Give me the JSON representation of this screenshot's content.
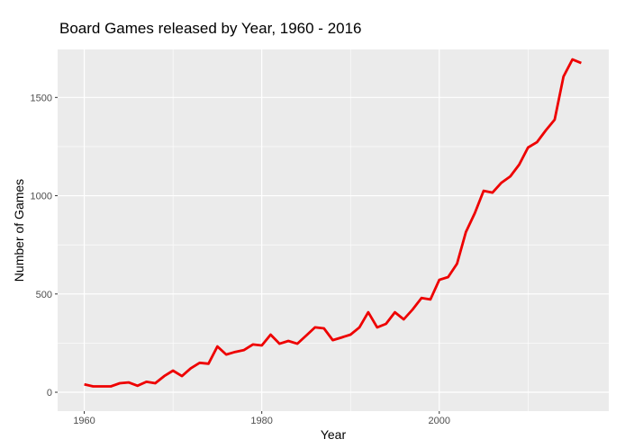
{
  "chart_data": {
    "type": "line",
    "title": "Board Games released by Year,  1960 - 2016",
    "xlabel": "Year",
    "ylabel": "Number of Games",
    "xlim": [
      1957,
      2019.1
    ],
    "ylim": [
      -96,
      1744
    ],
    "xticks": [
      1960,
      1980,
      2000
    ],
    "yticks": [
      0,
      500,
      1000,
      1500
    ],
    "x_minor": [
      1970,
      1990,
      2010
    ],
    "y_minor": [
      250,
      750,
      1250
    ],
    "grid": true,
    "line_color": "#ee0000",
    "panel_color": "#ebebeb",
    "x": [
      1960,
      1961,
      1962,
      1963,
      1964,
      1965,
      1966,
      1967,
      1968,
      1969,
      1970,
      1971,
      1972,
      1973,
      1974,
      1975,
      1976,
      1977,
      1978,
      1979,
      1980,
      1981,
      1982,
      1983,
      1984,
      1985,
      1986,
      1987,
      1988,
      1989,
      1990,
      1991,
      1992,
      1993,
      1994,
      1995,
      1996,
      1997,
      1998,
      1999,
      2000,
      2001,
      2002,
      2003,
      2004,
      2005,
      2006,
      2007,
      2008,
      2009,
      2010,
      2011,
      2012,
      2013,
      2014,
      2015,
      2016
    ],
    "y": [
      40,
      30,
      30,
      30,
      46,
      50,
      33,
      53,
      46,
      82,
      110,
      82,
      122,
      150,
      145,
      233,
      192,
      205,
      215,
      243,
      238,
      293,
      247,
      261,
      247,
      288,
      330,
      325,
      265,
      279,
      293,
      330,
      407,
      330,
      348,
      407,
      371,
      421,
      480,
      472,
      572,
      586,
      654,
      815,
      911,
      1025,
      1016,
      1066,
      1098,
      1158,
      1245,
      1272,
      1332,
      1387,
      1606,
      1693,
      1675
    ]
  }
}
